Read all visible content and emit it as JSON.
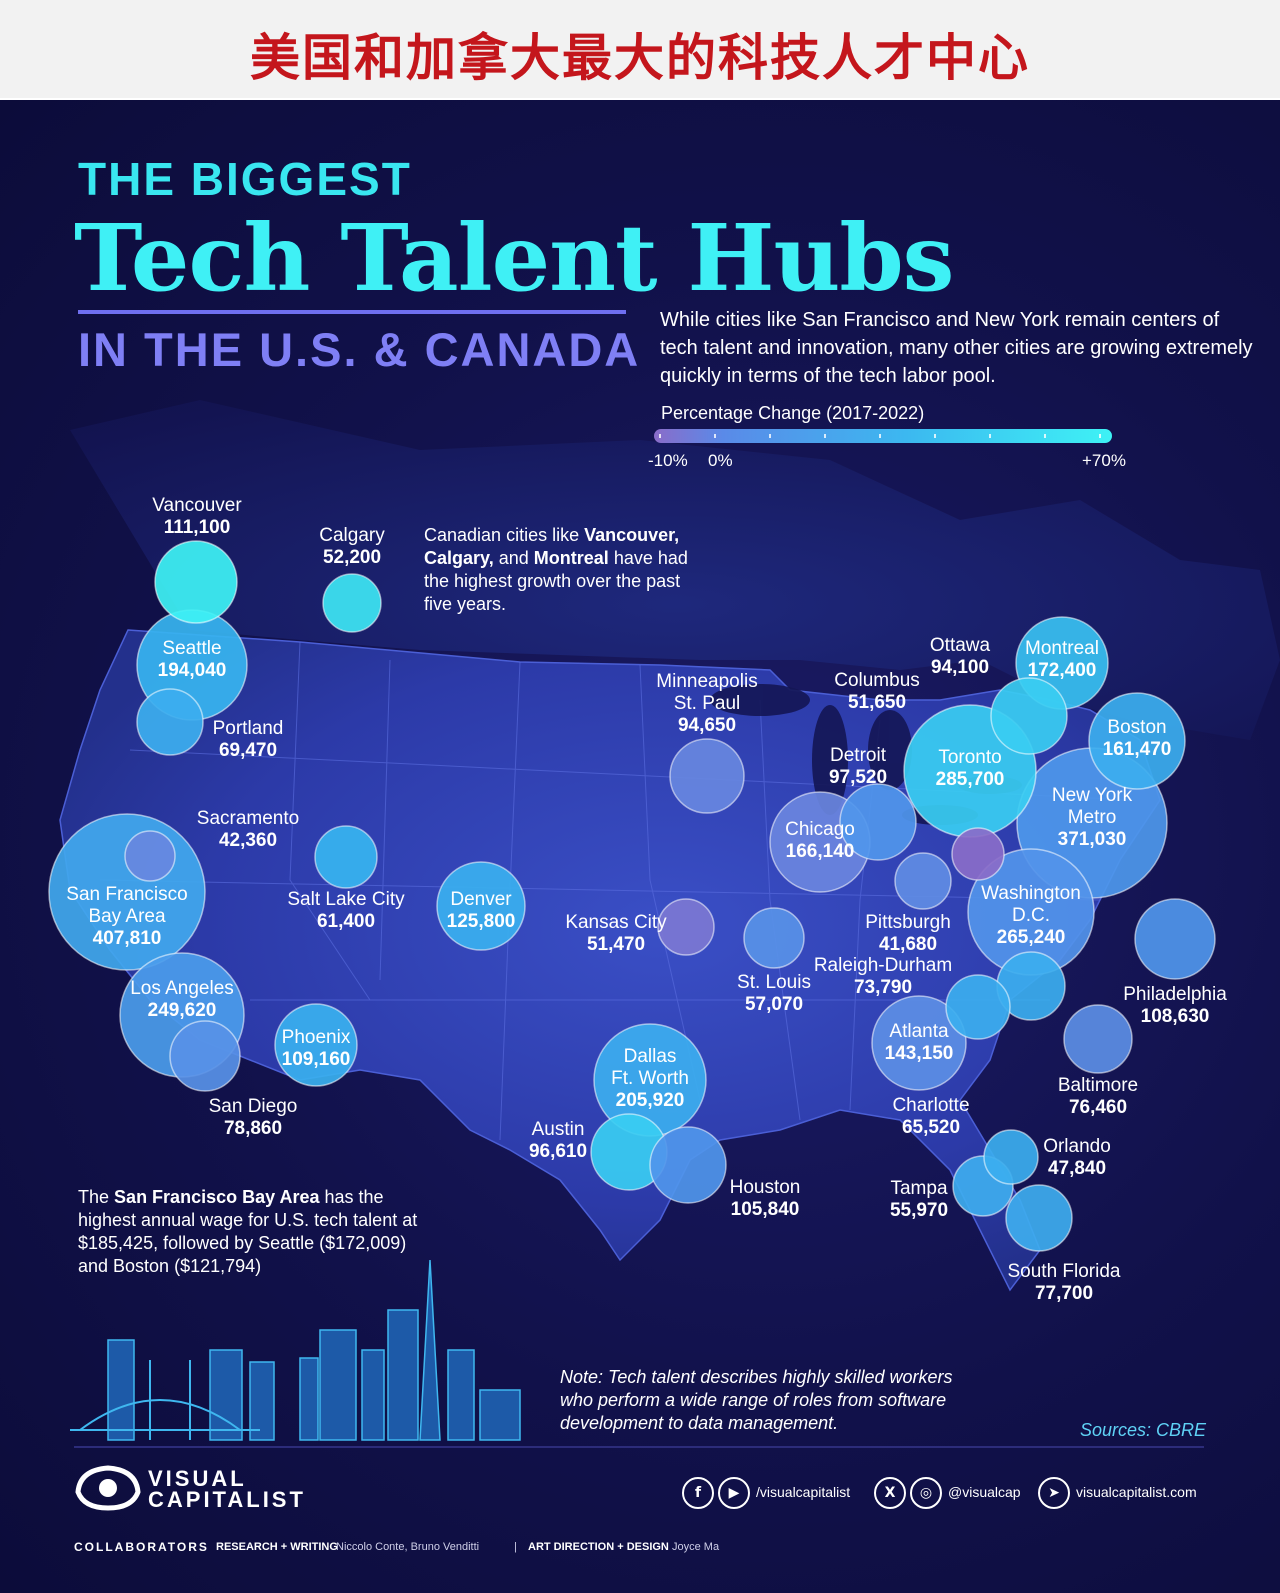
{
  "banner": {
    "title": "美国和加拿大最大的科技人才中心"
  },
  "header": {
    "pre_title": "THE BIGGEST",
    "title": "Tech Talent Hubs",
    "subtitle": "IN THE U.S. & CANADA"
  },
  "intro": "While cities like San Francisco and New York remain centers of tech talent and innovation, many other cities are growing extremely quickly in terms of the tech labor pool.",
  "legend": {
    "title": "Percentage Change (2017-2022)",
    "min_label": "-10%",
    "zero_label": "0%",
    "max_label": "+70%"
  },
  "cities": [
    {
      "name": "Vancouver",
      "value": "111,100",
      "change": 70
    },
    {
      "name": "Calgary",
      "value": "52,200",
      "change": 65
    },
    {
      "name": "Seattle",
      "value": "194,040",
      "change": 45
    },
    {
      "name": "Portland",
      "value": "69,470",
      "change": 40
    },
    {
      "name": "Sacramento",
      "value": "42,360",
      "change": 5
    },
    {
      "name": "San Francisco Bay Area",
      "value": "407,810",
      "change": 35
    },
    {
      "name": "Salt Lake City",
      "value": "61,400",
      "change": 45
    },
    {
      "name": "Denver",
      "value": "125,800",
      "change": 42
    },
    {
      "name": "Los Angeles",
      "value": "249,620",
      "change": 25
    },
    {
      "name": "San Diego",
      "value": "78,860",
      "change": 15
    },
    {
      "name": "Phoenix",
      "value": "109,160",
      "change": 42
    },
    {
      "name": "Minneapolis St. Paul",
      "value": "94,650",
      "change": 5
    },
    {
      "name": "Kansas City",
      "value": "51,470",
      "change": -5
    },
    {
      "name": "Chicago",
      "value": "166,140",
      "change": 3
    },
    {
      "name": "St. Louis",
      "value": "57,070",
      "change": 15
    },
    {
      "name": "Dallas Ft. Worth",
      "value": "205,920",
      "change": 40
    },
    {
      "name": "Austin",
      "value": "96,610",
      "change": 55
    },
    {
      "name": "Houston",
      "value": "105,840",
      "change": 20
    },
    {
      "name": "Detroit",
      "value": "97,520",
      "change": 20
    },
    {
      "name": "Columbus",
      "value": "51,650",
      "change": 10
    },
    {
      "name": "Toronto",
      "value": "285,700",
      "change": 55
    },
    {
      "name": "Ottawa",
      "value": "94,100",
      "change": 55
    },
    {
      "name": "Montreal",
      "value": "172,400",
      "change": 50
    },
    {
      "name": "Boston",
      "value": "161,470",
      "change": 40
    },
    {
      "name": "New York Metro",
      "value": "371,030",
      "change": 22
    },
    {
      "name": "Pittsburgh",
      "value": "41,680",
      "change": -10
    },
    {
      "name": "Washington D.C.",
      "value": "265,240",
      "change": 18
    },
    {
      "name": "Philadelphia",
      "value": "108,630",
      "change": 20
    },
    {
      "name": "Baltimore",
      "value": "76,460",
      "change": 12
    },
    {
      "name": "Raleigh-Durham",
      "value": "73,790",
      "change": 40
    },
    {
      "name": "Charlotte",
      "value": "65,520",
      "change": 40
    },
    {
      "name": "Atlanta",
      "value": "143,150",
      "change": 12
    },
    {
      "name": "Orlando",
      "value": "47,840",
      "change": 40
    },
    {
      "name": "Tampa",
      "value": "55,970",
      "change": 38
    },
    {
      "name": "South Florida",
      "value": "77,700",
      "change": 38
    }
  ],
  "annotations": {
    "canada_pre": "Canadian cities like",
    "canada_b1": "Vancouver,",
    "canada_b2": "Calgary,",
    "canada_mid": "and",
    "canada_b3": "Montreal",
    "canada_post": "have had the highest growth over the past five years.",
    "wage_pre": "The",
    "wage_bold": "San Francisco Bay Area",
    "wage_post": "has the highest annual wage for U.S. tech talent at $185,425, followed by Seattle ($172,009) and Boston ($121,794)"
  },
  "note": "Note: Tech talent describes highly skilled workers who perform a wide range of roles from software development to data management.",
  "sources": "Sources: CBRE",
  "footer": {
    "brand_line1": "VISUAL",
    "brand_line2": "CAPITALIST",
    "social_handle_1": "/visualcapitalist",
    "social_handle_2": "@visualcap",
    "website": "visualcapitalist.com",
    "collaborators": "COLLABORATORS",
    "research_label": "RESEARCH + WRITING",
    "research_names": "Niccolo Conte, Bruno Venditti",
    "sep": "|",
    "design_label": "ART DIRECTION + DESIGN",
    "design_names": "Joyce Ma"
  },
  "colors": {
    "accent_cyan": "#3ff0f5",
    "accent_purple": "#7f7ff5",
    "background": "#11114a",
    "banner_red": "#c4161c"
  }
}
